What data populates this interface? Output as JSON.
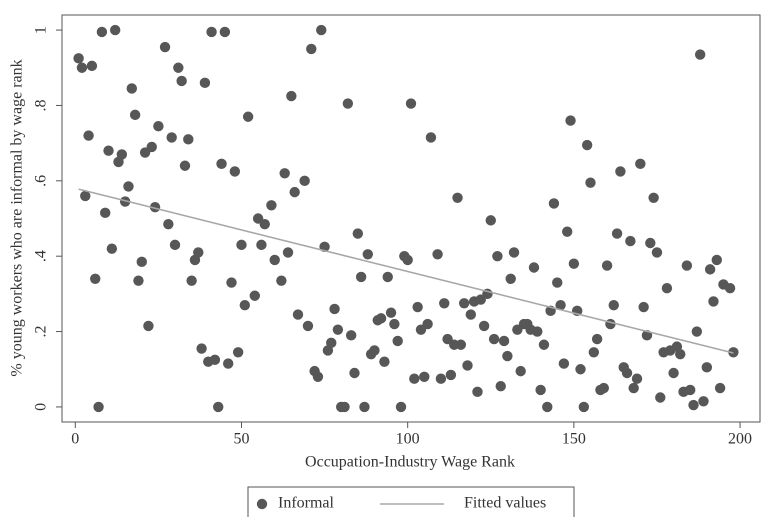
{
  "chart_data": {
    "type": "scatter",
    "xlabel": "Occupation-Industry Wage Rank",
    "ylabel": "% young workers who are informal by wage rank",
    "xlim": [
      -4,
      206
    ],
    "ylim": [
      -0.04,
      1.04
    ],
    "xticks": [
      0,
      50,
      100,
      150,
      200
    ],
    "yticks": [
      0,
      {
        "value": 0.2,
        "label": ".2"
      },
      {
        "value": 0.4,
        "label": ".4"
      },
      {
        "value": 0.6,
        "label": ".6"
      },
      {
        "value": 0.8,
        "label": ".8"
      },
      1
    ],
    "legend": "bottom",
    "series": [
      {
        "name": "Informal",
        "mode": "markers",
        "color": "#575757",
        "x": [
          1,
          2,
          3,
          4,
          5,
          6,
          7,
          8,
          9,
          10,
          11,
          12,
          13,
          14,
          15,
          16,
          17,
          18,
          19,
          20,
          21,
          22,
          23,
          24,
          25,
          27,
          28,
          29,
          30,
          31,
          32,
          33,
          34,
          35,
          36,
          37,
          38,
          39,
          40,
          41,
          42,
          43,
          44,
          45,
          46,
          47,
          48,
          49,
          50,
          51,
          52,
          54,
          55,
          56,
          57,
          59,
          60,
          62,
          63,
          64,
          65,
          66,
          67,
          69,
          70,
          71,
          72,
          73,
          74,
          75,
          76,
          77,
          78,
          79,
          80,
          81,
          82,
          83,
          84,
          85,
          86,
          87,
          88,
          89,
          90,
          91,
          92,
          93,
          94,
          95,
          96,
          97,
          98,
          99,
          100,
          101,
          102,
          103,
          104,
          105,
          106,
          107,
          109,
          110,
          111,
          112,
          113,
          114,
          115,
          116,
          117,
          118,
          119,
          120,
          121,
          122,
          123,
          124,
          125,
          126,
          127,
          128,
          129,
          130,
          131,
          132,
          133,
          134,
          135,
          136,
          137,
          138,
          139,
          140,
          141,
          142,
          143,
          144,
          145,
          146,
          147,
          148,
          149,
          150,
          151,
          152,
          153,
          154,
          155,
          156,
          157,
          158,
          159,
          160,
          161,
          162,
          163,
          164,
          165,
          166,
          167,
          168,
          169,
          170,
          171,
          172,
          173,
          174,
          175,
          176,
          177,
          178,
          179,
          180,
          181,
          182,
          183,
          184,
          185,
          186,
          187,
          188,
          189,
          190,
          191,
          192,
          193,
          194,
          195,
          197,
          198
        ],
        "values": [
          0.925,
          0.9,
          0.56,
          0.72,
          0.905,
          0.34,
          0,
          0.995,
          0.515,
          0.68,
          0.42,
          1.0,
          0.65,
          0.67,
          0.545,
          0.585,
          0.845,
          0.775,
          0.335,
          0.385,
          0.675,
          0.215,
          0.69,
          0.53,
          0.745,
          0.955,
          0.485,
          0.715,
          0.43,
          0.9,
          0.865,
          0.64,
          0.71,
          0.335,
          0.39,
          0.41,
          0.155,
          0.86,
          0.12,
          0.995,
          0.125,
          0,
          0.645,
          0.995,
          0.115,
          0.33,
          0.625,
          0.145,
          0.43,
          0.27,
          0.77,
          0.295,
          0.5,
          0.43,
          0.485,
          0.535,
          0.39,
          0.335,
          0.62,
          0.41,
          0.825,
          0.57,
          0.245,
          0.6,
          0.215,
          0.95,
          0.095,
          0.08,
          1.0,
          0.425,
          0.15,
          0.17,
          0.26,
          0.205,
          0,
          0,
          0.805,
          0.19,
          0.09,
          0.46,
          0.345,
          0,
          0.405,
          0.14,
          0.15,
          0.23,
          0.235,
          0.12,
          0.345,
          0.25,
          0.22,
          0.175,
          0,
          0.4,
          0.39,
          0.805,
          0.075,
          0.265,
          0.205,
          0.08,
          0.22,
          0.715,
          0.405,
          0.075,
          0.275,
          0.18,
          0.085,
          0.165,
          0.555,
          0.165,
          0.275,
          0.11,
          0.245,
          0.28,
          0.04,
          0.285,
          0.215,
          0.3,
          0.495,
          0.18,
          0.4,
          0.055,
          0.175,
          0.135,
          0.34,
          0.41,
          0.205,
          0.095,
          0.22,
          0.22,
          0.205,
          0.37,
          0.2,
          0.045,
          0.165,
          0,
          0.255,
          0.54,
          0.33,
          0.27,
          0.115,
          0.465,
          0.76,
          0.38,
          0.255,
          0.1,
          0,
          0.695,
          0.595,
          0.145,
          0.18,
          0.045,
          0.05,
          0.375,
          0.22,
          0.27,
          0.46,
          0.625,
          0.105,
          0.09,
          0.44,
          0.05,
          0.075,
          0.645,
          0.265,
          0.19,
          0.435,
          0.555,
          0.41,
          0.025,
          0.145,
          0.315,
          0.15,
          0.09,
          0.16,
          0.14,
          0.04,
          0.375,
          0.045,
          0.005,
          0.2,
          0.935,
          0.015,
          0.105,
          0.365,
          0.28,
          0.39,
          0.05,
          0.325,
          0.315,
          0.145
        ]
      },
      {
        "name": "Fitted values",
        "mode": "line",
        "color": "#a8a8a8",
        "x": [
          1,
          198
        ],
        "values": [
          0.578,
          0.143
        ]
      }
    ]
  }
}
